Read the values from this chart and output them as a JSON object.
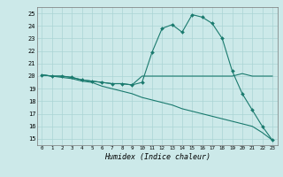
{
  "bg_color": "#cce9e9",
  "grid_color": "#aad4d4",
  "line_color": "#1a7a6e",
  "x_label": "Humidex (Indice chaleur)",
  "xlim": [
    -0.5,
    23.5
  ],
  "ylim": [
    14.5,
    25.5
  ],
  "yticks": [
    15,
    16,
    17,
    18,
    19,
    20,
    21,
    22,
    23,
    24,
    25
  ],
  "xticks": [
    0,
    1,
    2,
    3,
    4,
    5,
    6,
    7,
    8,
    9,
    10,
    11,
    12,
    13,
    14,
    15,
    16,
    17,
    18,
    19,
    20,
    21,
    22,
    23
  ],
  "line1_x": [
    0,
    1,
    2,
    3,
    4,
    5,
    6,
    7,
    8,
    9,
    10,
    11,
    12,
    13,
    14,
    15,
    16,
    17,
    18,
    19,
    20,
    21,
    22,
    23
  ],
  "line1_y": [
    20.1,
    20.0,
    20.0,
    19.9,
    19.7,
    19.6,
    19.5,
    19.4,
    19.4,
    19.3,
    20.0,
    20.0,
    20.0,
    20.0,
    20.0,
    20.0,
    20.0,
    20.0,
    20.0,
    20.0,
    20.2,
    20.0,
    20.0,
    20.0
  ],
  "line2_x": [
    0,
    1,
    2,
    3,
    4,
    5,
    6,
    7,
    8,
    9,
    10,
    11,
    12,
    13,
    14,
    15,
    16,
    17,
    18,
    19,
    20,
    21,
    22,
    23
  ],
  "line2_y": [
    20.1,
    20.0,
    20.0,
    19.9,
    19.7,
    19.6,
    19.5,
    19.4,
    19.4,
    19.3,
    19.5,
    21.9,
    23.8,
    24.1,
    23.5,
    24.9,
    24.7,
    24.2,
    23.0,
    20.4,
    18.6,
    17.3,
    16.0,
    14.9
  ],
  "line3_x": [
    0,
    1,
    2,
    3,
    4,
    5,
    6,
    7,
    8,
    9,
    10,
    11,
    12,
    13,
    14,
    15,
    16,
    17,
    18,
    19,
    20,
    21,
    22,
    23
  ],
  "line3_y": [
    20.1,
    20.0,
    19.9,
    19.8,
    19.6,
    19.5,
    19.2,
    19.0,
    18.8,
    18.6,
    18.3,
    18.1,
    17.9,
    17.7,
    17.4,
    17.2,
    17.0,
    16.8,
    16.6,
    16.4,
    16.2,
    16.0,
    15.5,
    14.9
  ]
}
